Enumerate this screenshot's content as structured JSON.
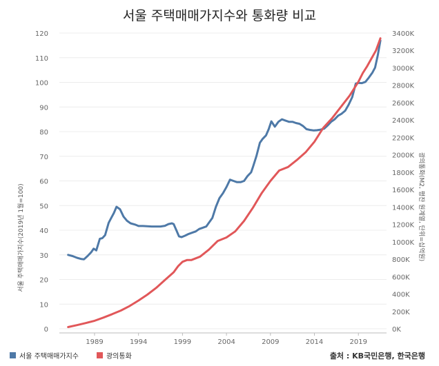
{
  "chart_data": {
    "type": "line",
    "title": "서울 주택매매가지수와 통화량 비교",
    "ylabel_left": "서울 주택매매가지수(2019년 1월=100)",
    "ylabel_right": "광의통화(M2, 평잔 원계열, 단위=십억원)",
    "x_ticks": [
      "1989",
      "1994",
      "1999",
      "2004",
      "2009",
      "2014",
      "2019"
    ],
    "x_range": [
      1985,
      2022.2
    ],
    "y_left": {
      "range": [
        0,
        120
      ],
      "ticks": [
        "0",
        "10",
        "20",
        "30",
        "40",
        "50",
        "60",
        "70",
        "80",
        "90",
        "100",
        "110",
        "120"
      ]
    },
    "y_right": {
      "range": [
        0,
        3400
      ],
      "ticks": [
        "0K",
        "200K",
        "400K",
        "600K",
        "800K",
        "1000K",
        "1200K",
        "1400K",
        "1600K",
        "1800K",
        "2000K",
        "2200K",
        "2400K",
        "2600K",
        "2800K",
        "3000K",
        "3200K",
        "3400K"
      ]
    },
    "series": [
      {
        "name": "서울 주택매매가지수",
        "axis": "left",
        "color": "#4e79a7",
        "x": [
          1986.0,
          1986.5,
          1987.0,
          1987.5,
          1987.8,
          1988.2,
          1988.6,
          1988.9,
          1989.2,
          1989.6,
          1989.9,
          1990.2,
          1990.6,
          1990.9,
          1991.2,
          1991.5,
          1991.9,
          1992.3,
          1992.7,
          1993.1,
          1993.6,
          1994.0,
          1994.5,
          1995.0,
          1995.5,
          1996.0,
          1996.5,
          1997.0,
          1997.4,
          1997.8,
          1998.0,
          1998.3,
          1998.6,
          1998.9,
          1999.3,
          1999.7,
          2000.1,
          2000.5,
          2000.9,
          2001.3,
          2001.7,
          2002.0,
          2002.4,
          2002.8,
          2003.2,
          2003.6,
          2004.0,
          2004.4,
          2004.8,
          2005.2,
          2005.6,
          2006.0,
          2006.4,
          2006.8,
          2007.0,
          2007.4,
          2007.8,
          2008.1,
          2008.5,
          2008.8,
          2009.1,
          2009.5,
          2009.9,
          2010.3,
          2010.7,
          2011.1,
          2011.5,
          2011.9,
          2012.3,
          2012.7,
          2013.1,
          2013.5,
          2013.9,
          2014.3,
          2014.7,
          2015.1,
          2015.5,
          2015.9,
          2016.3,
          2016.7,
          2017.1,
          2017.5,
          2017.9,
          2018.3,
          2018.7,
          2019.0,
          2019.4,
          2019.8,
          2020.2,
          2020.6,
          2020.9,
          2021.2,
          2021.5
        ],
        "y": [
          30,
          29.5,
          28.8,
          28.3,
          28.2,
          29.5,
          31,
          32.5,
          31.8,
          36.5,
          36.8,
          38,
          43,
          45,
          47,
          49.5,
          48.5,
          45.5,
          43.8,
          42.8,
          42.3,
          41.7,
          41.7,
          41.6,
          41.5,
          41.5,
          41.5,
          41.8,
          42.5,
          42.8,
          42.5,
          40,
          37.5,
          37.2,
          37.8,
          38.5,
          39,
          39.5,
          40.5,
          41,
          41.5,
          43,
          45,
          49.5,
          53,
          55,
          57.5,
          60.5,
          60,
          59.5,
          59.5,
          60,
          62,
          63.5,
          65.5,
          70,
          75.5,
          77,
          78.5,
          81,
          84.2,
          82,
          84,
          85,
          84.5,
          84,
          84,
          83.5,
          83.2,
          82.3,
          81,
          80.7,
          80.5,
          80.6,
          80.8,
          81.2,
          82.5,
          84,
          85,
          86.5,
          87.3,
          88.5,
          91,
          94,
          99.5,
          99.8,
          99.7,
          100.2,
          102,
          104,
          106,
          111,
          117
        ]
      },
      {
        "name": "광의통화",
        "axis": "right",
        "color": "#e15759",
        "x": [
          1986.0,
          1987.0,
          1988.0,
          1989.0,
          1990.0,
          1991.0,
          1992.0,
          1993.0,
          1994.0,
          1995.0,
          1996.0,
          1997.0,
          1998.0,
          1998.5,
          1999.0,
          1999.5,
          2000.0,
          2001.0,
          2002.0,
          2003.0,
          2004.0,
          2005.0,
          2006.0,
          2007.0,
          2008.0,
          2009.0,
          2010.0,
          2011.0,
          2012.0,
          2013.0,
          2014.0,
          2015.0,
          2016.0,
          2017.0,
          2018.0,
          2019.0,
          2019.5,
          2020.0,
          2020.5,
          2021.0,
          2021.5
        ],
        "y": [
          20,
          42,
          66,
          92,
          128,
          168,
          210,
          262,
          325,
          392,
          470,
          560,
          650,
          720,
          770,
          790,
          790,
          830,
          910,
          1010,
          1050,
          1120,
          1240,
          1390,
          1560,
          1700,
          1820,
          1860,
          1940,
          2030,
          2150,
          2310,
          2420,
          2550,
          2680,
          2840,
          2940,
          3020,
          3110,
          3200,
          3340
        ]
      }
    ]
  },
  "legend": [
    {
      "label": "서울 주택매매가지수",
      "color": "#4e79a7"
    },
    {
      "label": "광의통화",
      "color": "#e15759"
    }
  ],
  "source": "출처 : KB국민은행, 한국은행"
}
